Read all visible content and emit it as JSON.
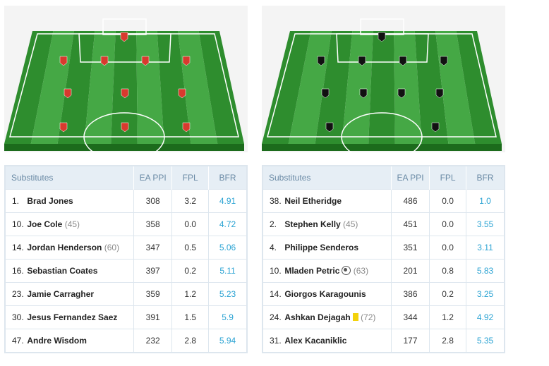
{
  "colors": {
    "home_kit": "#d83a2e",
    "away_kit": "#111111",
    "pitch_dark": "#2e8d2e",
    "pitch_light": "#45a845",
    "bfr_value": "#2ba3d3"
  },
  "left_team": {
    "kit_color": "#d83a2e",
    "formation_rows": [
      1,
      4,
      3,
      3
    ],
    "substitutes": {
      "headers": {
        "name": "Substitutes",
        "ea_ppi": "EA PPI",
        "fpl": "FPL",
        "bfr": "BFR"
      },
      "rows": [
        {
          "number": "1.",
          "name": "Brad Jones",
          "extra": "",
          "ea_ppi": "308",
          "fpl": "3.2",
          "bfr": "4.91"
        },
        {
          "number": "10.",
          "name": "Joe Cole",
          "extra": "(45)",
          "ea_ppi": "358",
          "fpl": "0.0",
          "bfr": "4.72"
        },
        {
          "number": "14.",
          "name": "Jordan Henderson",
          "extra": "(60)",
          "ea_ppi": "347",
          "fpl": "0.5",
          "bfr": "5.06"
        },
        {
          "number": "16.",
          "name": "Sebastian Coates",
          "extra": "",
          "ea_ppi": "397",
          "fpl": "0.2",
          "bfr": "5.11"
        },
        {
          "number": "23.",
          "name": "Jamie Carragher",
          "extra": "",
          "ea_ppi": "359",
          "fpl": "1.2",
          "bfr": "5.23"
        },
        {
          "number": "30.",
          "name": "Jesus Fernandez Saez",
          "extra": "",
          "ea_ppi": "391",
          "fpl": "1.5",
          "bfr": "5.9"
        },
        {
          "number": "47.",
          "name": "Andre Wisdom",
          "extra": "",
          "ea_ppi": "232",
          "fpl": "2.8",
          "bfr": "5.94"
        }
      ]
    }
  },
  "right_team": {
    "kit_color": "#111111",
    "formation_rows": [
      1,
      4,
      4,
      2
    ],
    "substitutes": {
      "headers": {
        "name": "Substitutes",
        "ea_ppi": "EA PPI",
        "fpl": "FPL",
        "bfr": "BFR"
      },
      "rows": [
        {
          "number": "38.",
          "name": "Neil Etheridge",
          "extra": "",
          "ea_ppi": "486",
          "fpl": "0.0",
          "bfr": "1.0"
        },
        {
          "number": "2.",
          "name": "Stephen Kelly",
          "extra": "(45)",
          "ea_ppi": "451",
          "fpl": "0.0",
          "bfr": "3.55"
        },
        {
          "number": "4.",
          "name": "Philippe Senderos",
          "extra": "",
          "ea_ppi": "351",
          "fpl": "0.0",
          "bfr": "3.11"
        },
        {
          "number": "10.",
          "name": "Mladen Petric",
          "extra": "(63)",
          "icon": "ball-icon",
          "ea_ppi": "201",
          "fpl": "0.8",
          "bfr": "5.83"
        },
        {
          "number": "14.",
          "name": "Giorgos Karagounis",
          "extra": "",
          "ea_ppi": "386",
          "fpl": "0.2",
          "bfr": "3.25"
        },
        {
          "number": "24.",
          "name": "Ashkan Dejagah",
          "extra": "(72)",
          "icon": "yellow-card-icon",
          "ea_ppi": "344",
          "fpl": "1.2",
          "bfr": "4.92"
        },
        {
          "number": "31.",
          "name": "Alex Kacaniklic",
          "extra": "",
          "ea_ppi": "177",
          "fpl": "2.8",
          "bfr": "5.35"
        }
      ]
    }
  }
}
